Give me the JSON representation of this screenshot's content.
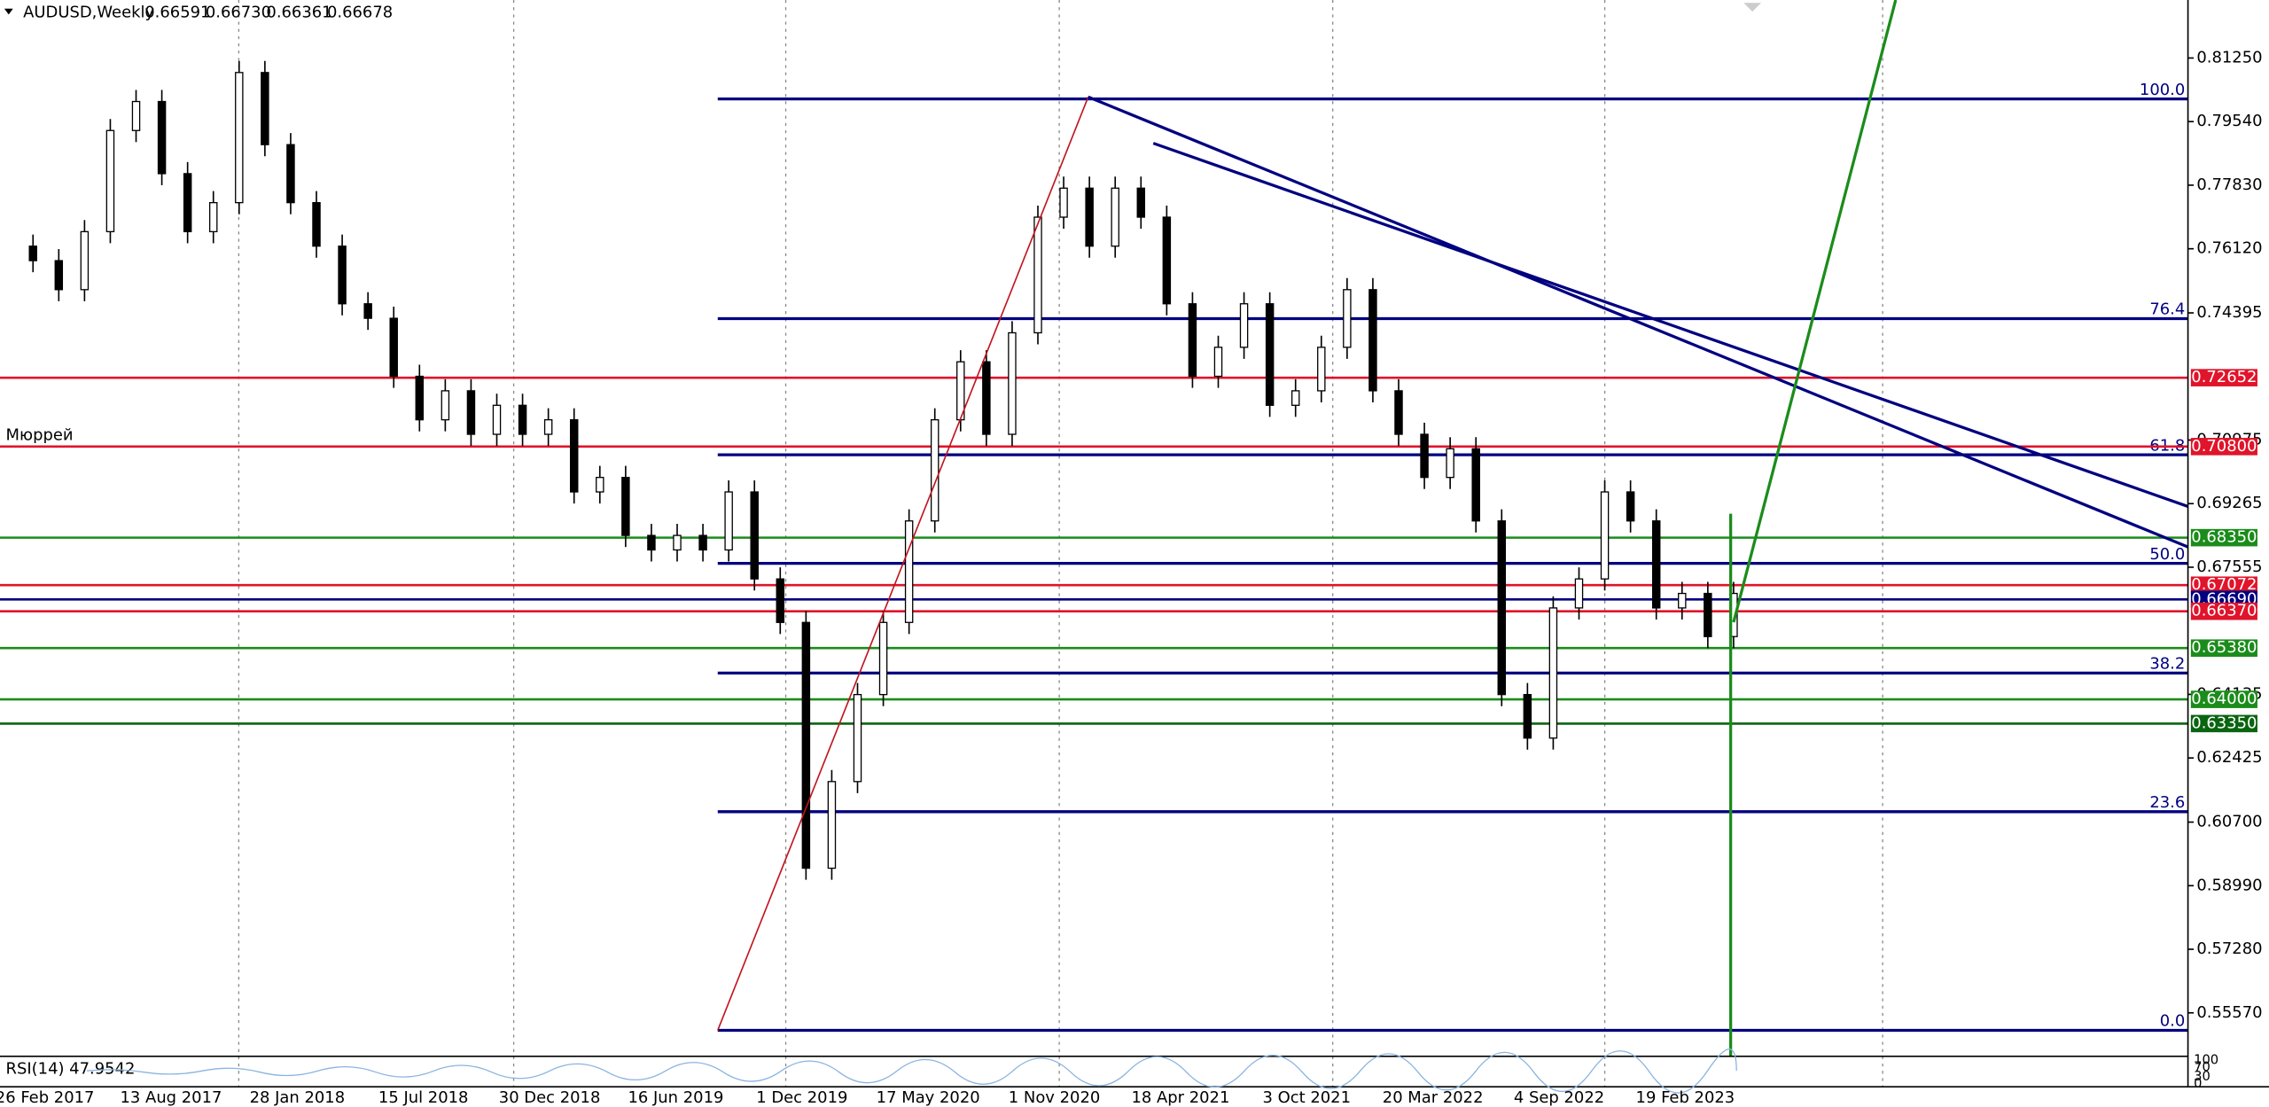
{
  "chart_data": {
    "type": "candlestick",
    "title": "AUDUSD,Weekly",
    "ohlc_labels": [
      "0.66591",
      "0.66730",
      "0.66361",
      "0.66678"
    ],
    "series": [
      {
        "name": "AUDUSD",
        "color": "#000000",
        "values": [
          0.7619,
          0.758,
          0.7502,
          0.7658,
          0.793,
          0.8008,
          0.7814,
          0.7658,
          0.7736,
          0.8086,
          0.7892,
          0.7736,
          0.7619,
          0.7464,
          0.7425,
          0.7269,
          0.7152,
          0.723,
          0.7113,
          0.7191,
          0.7113,
          0.7152,
          0.6958,
          0.6997,
          0.6841,
          0.6802,
          0.6841,
          0.6802,
          0.6958,
          0.6724,
          0.6607,
          0.5946,
          0.6179,
          0.6413,
          0.6607,
          0.688,
          0.7152,
          0.7308,
          0.7113,
          0.7386,
          0.7697,
          0.7775,
          0.7619,
          0.7775,
          0.7697,
          0.7464,
          0.7269,
          0.7347,
          0.7464,
          0.7191,
          0.723,
          0.7347,
          0.7502,
          0.723,
          0.7113,
          0.6997,
          0.7074,
          0.688,
          0.6413,
          0.6296,
          0.6646,
          0.6724,
          0.6958,
          0.688,
          0.6646,
          0.6685,
          0.6569,
          0.6685
        ]
      }
    ],
    "x_labels": [
      "26 Feb 2017",
      "13 Aug 2017",
      "28 Jan 2018",
      "15 Jul 2018",
      "30 Dec 2018",
      "16 Jun 2019",
      "1 Dec 2019",
      "17 May 2020",
      "1 Nov 2020",
      "18 Apr 2021",
      "3 Oct 2021",
      "20 Mar 2022",
      "4 Sep 2022",
      "19 Feb 2023"
    ],
    "ylim": [
      0.544,
      0.8281
    ],
    "yticks": [
      {
        "value": 0.8125,
        "label": "0.81250"
      },
      {
        "value": 0.7954,
        "label": "0.79540"
      },
      {
        "value": 0.7783,
        "label": "0.77830"
      },
      {
        "value": 0.7612,
        "label": "0.76120"
      },
      {
        "value": 0.74395,
        "label": "0.74395"
      },
      {
        "value": 0.70975,
        "label": "0.70975"
      },
      {
        "value": 0.69265,
        "label": "0.69265"
      },
      {
        "value": 0.67555,
        "label": "0.67555"
      },
      {
        "value": 0.64135,
        "label": "0.64135"
      },
      {
        "value": 0.62425,
        "label": "0.62425"
      },
      {
        "value": 0.607,
        "label": "0.60700"
      },
      {
        "value": 0.5899,
        "label": "0.58990"
      },
      {
        "value": 0.5728,
        "label": "0.57280"
      },
      {
        "value": 0.5557,
        "label": "0.55570"
      }
    ],
    "levels": [
      {
        "value": 0.72652,
        "label": "0.72652",
        "color": "#e0142a"
      },
      {
        "value": 0.708,
        "label": "0.70800",
        "color": "#e0142a"
      },
      {
        "value": 0.6835,
        "label": "0.68350",
        "color": "#1b8c1b"
      },
      {
        "value": 0.67072,
        "label": "0.67072",
        "color": "#e0142a"
      },
      {
        "value": 0.6669,
        "label": "0.66690",
        "color": "#000080"
      },
      {
        "value": 0.6637,
        "label": "0.66370",
        "color": "#e0142a"
      },
      {
        "value": 0.6538,
        "label": "0.65380",
        "color": "#1b8c1b"
      },
      {
        "value": 0.64,
        "label": "0.64000",
        "color": "#1b8c1b"
      },
      {
        "value": 0.6335,
        "label": "0.63350",
        "color": "#0a6410"
      }
    ],
    "fib_levels": [
      {
        "value": 0.8015,
        "label": "100.0"
      },
      {
        "value": 0.7424,
        "label": "76.4"
      },
      {
        "value": 0.7058,
        "label": "61.8"
      },
      {
        "value": 0.6766,
        "label": "50.0"
      },
      {
        "value": 0.6471,
        "label": "38.2"
      },
      {
        "value": 0.6098,
        "label": "23.6"
      },
      {
        "value": 0.551,
        "label": "0.0"
      }
    ],
    "fib_color": "#000080",
    "annotation": "Мюррей",
    "rsi_label": "RSI(14) 47.9542",
    "rsi_ylim": [
      0,
      100
    ],
    "rsi_yticks": [
      100,
      70,
      30,
      0
    ]
  }
}
